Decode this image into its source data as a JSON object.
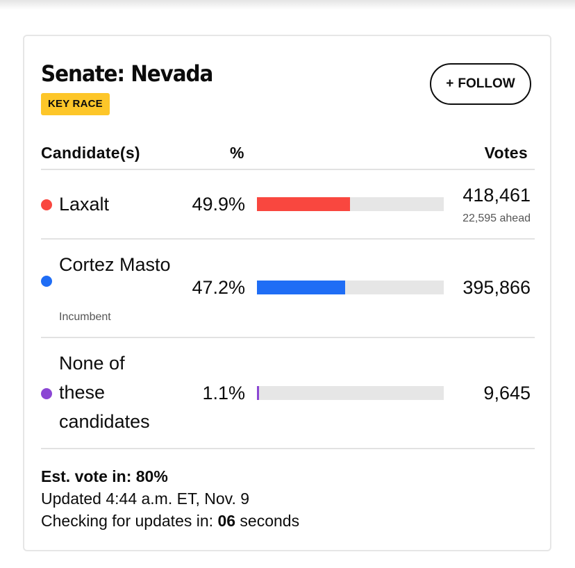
{
  "race": {
    "title": "Senate: Nevada",
    "badge": "KEY RACE",
    "follow_label": "FOLLOW",
    "follow_icon": "+"
  },
  "table": {
    "headers": {
      "candidate": "Candidate(s)",
      "pct": "%",
      "votes": "Votes"
    },
    "candidates": [
      {
        "name": "Laxalt",
        "pct_text": "49.9%",
        "pct": 49.9,
        "votes": "418,461",
        "note": "22,595 ahead",
        "color": "#f9473f"
      },
      {
        "name": "Cortez Masto",
        "pct_text": "47.2%",
        "pct": 47.2,
        "votes": "395,866",
        "sub": "Incumbent",
        "color": "#1f6df5"
      },
      {
        "name": "None of these candidates",
        "pct_text": "1.1%",
        "pct": 1.1,
        "votes": "9,645",
        "color": "#8b46d4"
      }
    ]
  },
  "footer": {
    "est_vote_label": "Est. vote in:",
    "est_vote_value": "80%",
    "updated": "Updated 4:44 a.m. ET, Nov. 9",
    "checking_prefix": "Checking for updates in:",
    "checking_count": "06",
    "checking_suffix": "seconds"
  }
}
